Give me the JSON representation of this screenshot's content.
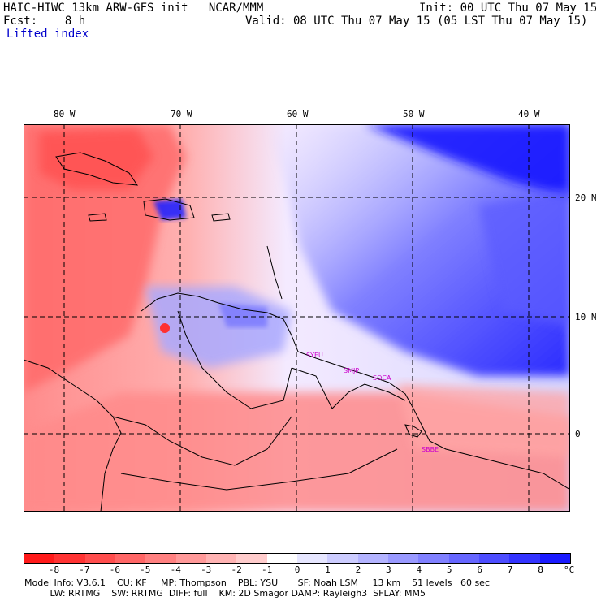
{
  "header": {
    "title_left": "HAIC-HIWC 13km ARW-GFS init   NCAR/MMM",
    "init": "Init: 00 UTC Thu 07 May 15",
    "fcst": "Fcst:    8 h",
    "valid": "Valid: 08 UTC Thu 07 May 15 (05 LST Thu 07 May 15)",
    "field": "Lifted index"
  },
  "map": {
    "lon_labels": [
      "80 W",
      "70 W",
      "60 W",
      "50 W",
      "40 W"
    ],
    "lat_labels": [
      "20 N",
      "10 N",
      "0"
    ],
    "stations": [
      "SYEU",
      "SMJP",
      "SOCA",
      "SBBE"
    ],
    "colors": {
      "negative": "#ff0000",
      "positive": "#0000ff",
      "land": "#000000"
    }
  },
  "colorbar": {
    "labels": [
      "-8",
      "-7",
      "-6",
      "-5",
      "-4",
      "-3",
      "-2",
      "-1",
      "0",
      "1",
      "2",
      "3",
      "4",
      "5",
      "6",
      "7",
      "8"
    ],
    "unit": "°C",
    "colors": [
      "#ff1a1a",
      "#ff3333",
      "#ff4d4d",
      "#ff6666",
      "#ff8080",
      "#ff9999",
      "#ffb3b3",
      "#ffcccc",
      "#ffffff",
      "#e6e6ff",
      "#ccccff",
      "#b3b3ff",
      "#9999ff",
      "#8080ff",
      "#6666ff",
      "#4d4dff",
      "#3333ff",
      "#1a1aff"
    ]
  },
  "model_info": {
    "line1": "Model Info: V3.6.1    CU: KF     MP: Thompson    PBL: YSU       SF: Noah LSM     13 km    51 levels   60 sec",
    "line2": "         LW: RRTMG    SW: RRTMG  DIFF: full    KM: 2D Smagor DAMP: Rayleigh3  SFLAY: MM5"
  }
}
